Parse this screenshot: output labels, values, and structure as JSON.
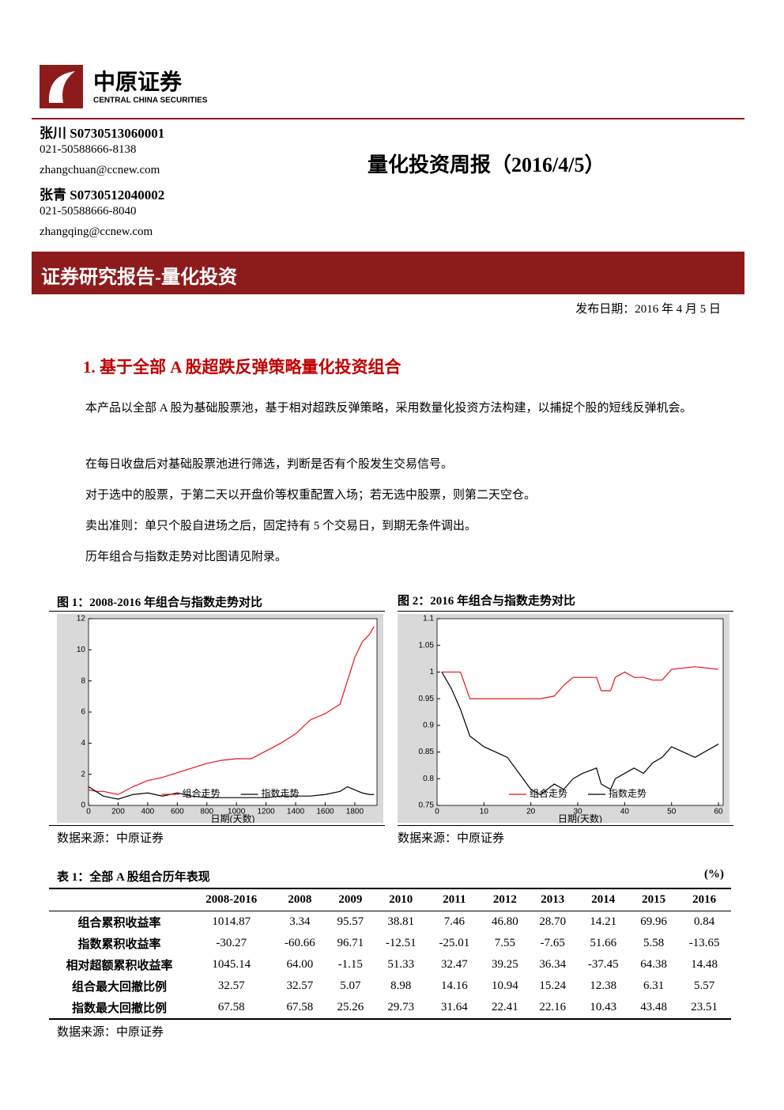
{
  "header": {
    "logo_cn": "中原证券",
    "logo_en": "CENTRAL CHINA SECURITIES",
    "title": "量化投资周报（2016/4/5）"
  },
  "authors": [
    {
      "name": "张川 S0730513060001",
      "phone": "021-50588666-8138",
      "email": "zhangchuan@ccnew.com"
    },
    {
      "name": "张青 S0730512040002",
      "phone": "021-50588666-8040",
      "email": "zhangqing@ccnew.com"
    }
  ],
  "banner": "证券研究报告-量化投资",
  "date": "发布日期：2016 年 4 月 5 日",
  "section": "1. 基于全部 A 股超跌反弹策略量化投资组合",
  "paragraphs": [
    "本产品以全部 A 股为基础股票池，基于相对超跌反弹策略，采用数量化投资方法构建，以捕捉个股的短线反弹机会。",
    "在每日收盘后对基础股票池进行筛选，判断是否有个股发生交易信号。",
    "对于选中的股票，于第二天以开盘价等权重配置入场；若无选中股票，则第二天空仓。",
    "卖出准则：单只个股自进场之后，固定持有 5 个交易日，到期无条件调出。",
    "历年组合与指数走势对比图请见附录。"
  ],
  "figures": [
    {
      "caption": "图 1：2008-2016 年组合与指数走势对比",
      "source": "数据来源：中原证券"
    },
    {
      "caption": "图 2：2016 年组合与指数走势对比",
      "source": "数据来源：中原证券"
    }
  ],
  "chart_data": [
    {
      "type": "line",
      "x_label": "日期(天数)",
      "legend": "lower center",
      "x": [
        0,
        50,
        100,
        200,
        300,
        400,
        500,
        600,
        700,
        800,
        900,
        1000,
        1100,
        1200,
        1300,
        1400,
        1500,
        1600,
        1700,
        1750,
        1800,
        1850,
        1900,
        1930
      ],
      "xlim": [
        0,
        1950
      ],
      "xticks": [
        0,
        200,
        400,
        600,
        800,
        1000,
        1200,
        1400,
        1600,
        1800
      ],
      "ylim": [
        0,
        12
      ],
      "yticks": [
        0,
        2,
        4,
        6,
        8,
        10,
        12
      ],
      "series": [
        {
          "name": "组合走势",
          "color": "#e8121b",
          "values": [
            1.0,
            0.9,
            0.9,
            0.7,
            1.2,
            1.6,
            1.8,
            2.1,
            2.4,
            2.7,
            2.9,
            3.0,
            3.0,
            3.5,
            4.0,
            4.6,
            5.5,
            5.9,
            6.5,
            8.0,
            9.5,
            10.5,
            11.0,
            11.5
          ]
        },
        {
          "name": "指数走势",
          "color": "#000000",
          "values": [
            1.2,
            0.9,
            0.6,
            0.4,
            0.7,
            0.8,
            0.6,
            0.8,
            0.6,
            0.5,
            0.5,
            0.5,
            0.5,
            0.5,
            0.6,
            0.6,
            0.6,
            0.7,
            0.9,
            1.2,
            1.0,
            0.8,
            0.7,
            0.7
          ]
        }
      ]
    },
    {
      "type": "line",
      "x_label": "日期(天数)",
      "legend": "lower center",
      "x": [
        1,
        3,
        5,
        7,
        10,
        15,
        20,
        22,
        25,
        27,
        29,
        31,
        34,
        35,
        37,
        38,
        40,
        42,
        44,
        46,
        48,
        50,
        55,
        60
      ],
      "xlim": [
        0,
        61
      ],
      "xticks": [
        0,
        10,
        20,
        30,
        40,
        50,
        60
      ],
      "ylim": [
        0.75,
        1.1
      ],
      "yticks": [
        0.75,
        0.8,
        0.85,
        0.9,
        0.95,
        1,
        1.05,
        1.1
      ],
      "series": [
        {
          "name": "组合走势",
          "color": "#e8121b",
          "values": [
            1,
            1,
            1,
            0.95,
            0.95,
            0.95,
            0.95,
            0.95,
            0.955,
            0.975,
            0.99,
            0.99,
            0.99,
            0.965,
            0.965,
            0.99,
            1.0,
            0.99,
            0.99,
            0.985,
            0.985,
            1.005,
            1.01,
            1.005
          ]
        },
        {
          "name": "指数走势",
          "color": "#000000",
          "values": [
            1,
            0.97,
            0.93,
            0.88,
            0.86,
            0.84,
            0.78,
            0.77,
            0.79,
            0.78,
            0.8,
            0.81,
            0.82,
            0.79,
            0.78,
            0.8,
            0.81,
            0.82,
            0.81,
            0.83,
            0.84,
            0.86,
            0.84,
            0.865
          ]
        }
      ]
    }
  ],
  "table": {
    "caption": "表 1：全部 A 股组合历年表现",
    "unit": "(%)",
    "columns": [
      "2008-2016",
      "2008",
      "2009",
      "2010",
      "2011",
      "2012",
      "2013",
      "2014",
      "2015",
      "2016"
    ],
    "rows": [
      [
        "组合累积收益率",
        "1014.87",
        "3.34",
        "95.57",
        "38.81",
        "7.46",
        "46.80",
        "28.70",
        "14.21",
        "69.96",
        "0.84"
      ],
      [
        "指数累积收益率",
        "-30.27",
        "-60.66",
        "96.71",
        "-12.51",
        "-25.01",
        "7.55",
        "-7.65",
        "51.66",
        "5.58",
        "-13.65"
      ],
      [
        "相对超额累积收益率",
        "1045.14",
        "64.00",
        "-1.15",
        "51.33",
        "32.47",
        "39.25",
        "36.34",
        "-37.45",
        "64.38",
        "14.48"
      ],
      [
        "组合最大回撤比例",
        "32.57",
        "32.57",
        "5.07",
        "8.98",
        "14.16",
        "10.94",
        "15.24",
        "12.38",
        "6.31",
        "5.57"
      ],
      [
        "指数最大回撤比例",
        "67.58",
        "67.58",
        "25.26",
        "29.73",
        "31.64",
        "22.41",
        "22.16",
        "10.43",
        "43.48",
        "23.51"
      ]
    ],
    "source": "数据来源：中原证券"
  }
}
